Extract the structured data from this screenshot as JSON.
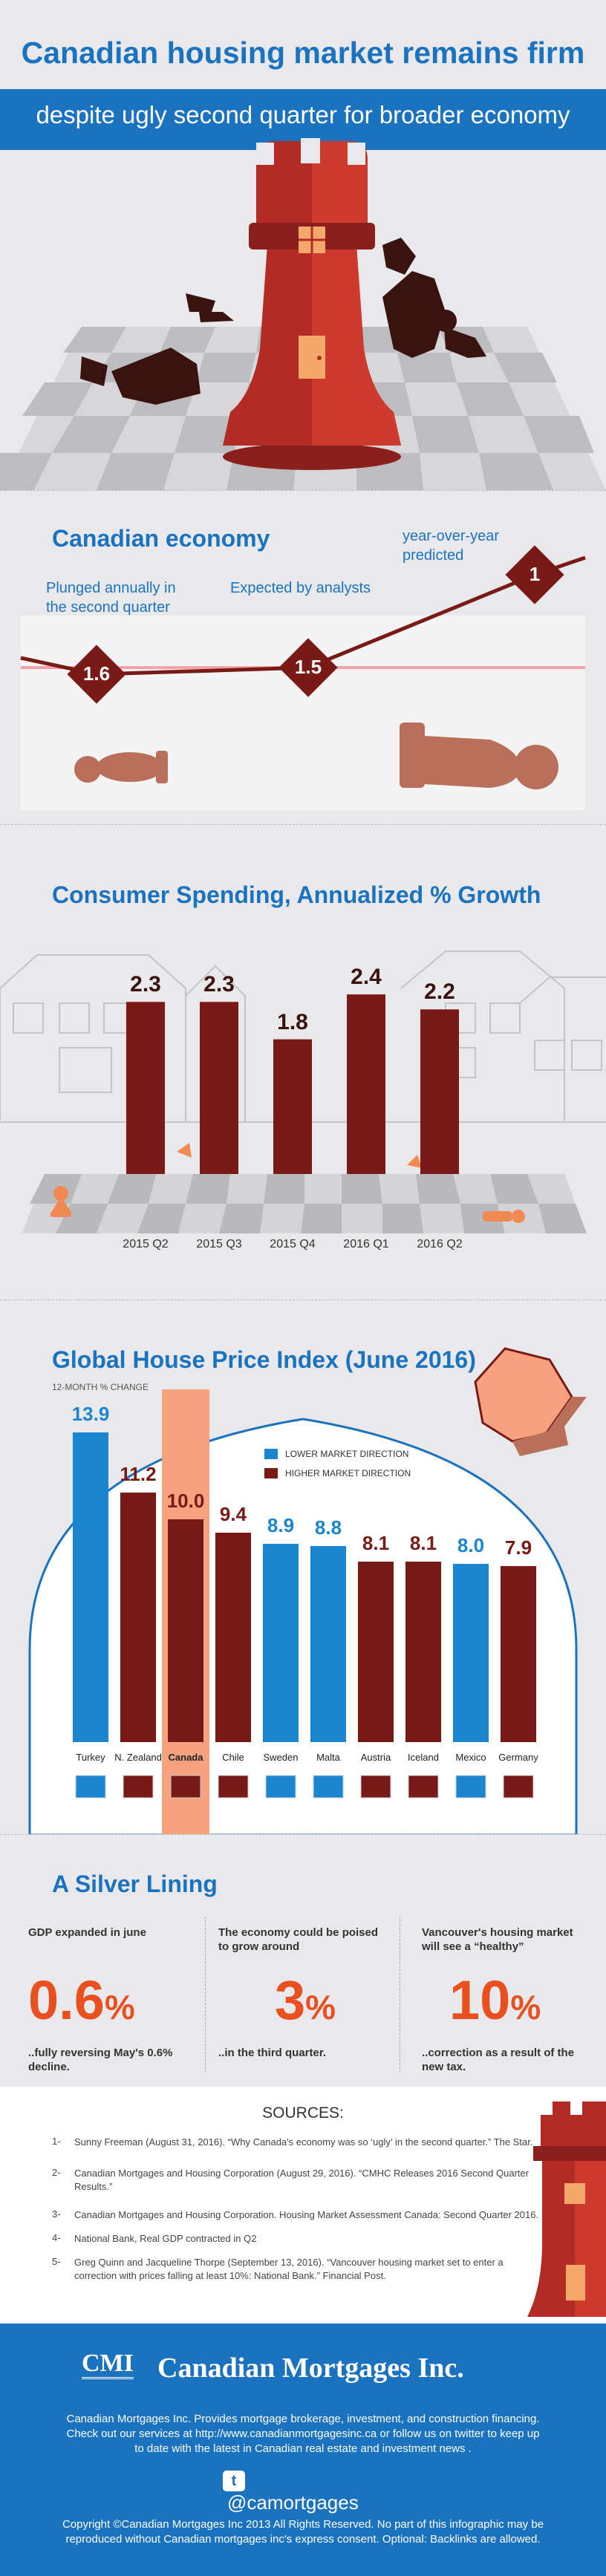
{
  "header": {
    "title": "Canadian housing market remains firm",
    "subtitle": "despite ugly second quarter for broader economy"
  },
  "economy": {
    "title": "Canadian economy",
    "points": [
      {
        "value": "1.6",
        "label_line1": "Plunged annually in",
        "label_line2": "the second quarter"
      },
      {
        "value": "1.5",
        "label_line1": "Expected by analysts",
        "label_line2": ""
      },
      {
        "value": "1",
        "label_line1": "year-over-year",
        "label_line2": "predicted"
      }
    ]
  },
  "spending": {
    "title": "Consumer Spending, Annualized % Growth",
    "chart_data": {
      "type": "bar",
      "title": "Consumer Spending, Annualized % Growth",
      "categories": [
        "2015 Q2",
        "2015 Q3",
        "2015 Q4",
        "2016 Q1",
        "2016 Q2"
      ],
      "values": [
        2.3,
        2.3,
        1.8,
        2.4,
        2.2
      ],
      "labels": [
        "2.3",
        "2.3",
        "1.8",
        "2.4",
        "2.2"
      ],
      "ylim": [
        0,
        2.6
      ],
      "color": "#7a1a17"
    }
  },
  "hpi": {
    "title": "Global House Price Index (June 2016)",
    "subtitle": "12-MONTH % CHANGE",
    "legend": {
      "lower": "LOWER MARKET DIRECTION",
      "higher": "HIGHER MARKET DIRECTION"
    },
    "colors": {
      "lower": "#1b86d0",
      "higher": "#7a1a17",
      "highlight": "#f6a27e"
    },
    "chart_data": {
      "type": "bar",
      "title": "Global House Price Index (June 2016)",
      "ylabel": "12-MONTH % CHANGE",
      "categories": [
        "Turkey",
        "N. Zealand",
        "Canada",
        "Chile",
        "Sweden",
        "Malta",
        "Austria",
        "Iceland",
        "Mexico",
        "Germany"
      ],
      "values": [
        13.9,
        11.2,
        10.0,
        9.4,
        8.9,
        8.8,
        8.1,
        8.1,
        8.0,
        7.9
      ],
      "labels": [
        "13.9",
        "11.2",
        "10.0",
        "9.4",
        "8.9",
        "8.8",
        "8.1",
        "8.1",
        "8.0",
        "7.9"
      ],
      "direction": [
        "lower",
        "higher",
        "higher",
        "higher",
        "lower",
        "lower",
        "higher",
        "higher",
        "lower",
        "higher"
      ],
      "highlight": "Canada",
      "ylim": [
        0,
        14
      ]
    }
  },
  "silver": {
    "title": "A Silver Lining",
    "stats": [
      {
        "label_line1": "GDP expanded in june",
        "label_line2": "",
        "value": "0.6",
        "unit": "%",
        "foot_line1": "..fully reversing May's 0.6%",
        "foot_line2": "decline."
      },
      {
        "label_line1": "The economy could be poised",
        "label_line2": "to grow around",
        "value": "3",
        "unit": "%",
        "foot_line1": "..in the third quarter.",
        "foot_line2": ""
      },
      {
        "label_line1": "Vancouver's housing market",
        "label_line2": "will see a “healthy”",
        "value": "10",
        "unit": "%",
        "foot_line1": "..correction as a result of the",
        "foot_line2": "new tax."
      }
    ]
  },
  "sources": {
    "title": "SOURCES:",
    "items": [
      {
        "num": "1-",
        "line1": "Sunny Freeman (August 31, 2016). “Why Canada's economy was so ‘ugly’ in the second quarter.” The Star.",
        "line2": ""
      },
      {
        "num": "2-",
        "line1": "Canadian Mortgages and Housing Corporation (August 29, 2016). “CMHC Releases 2016 Second Quarter",
        "line2": "Results.”"
      },
      {
        "num": "3-",
        "line1": "Canadian Mortgages and Housing Corporation. Housing Market Assessment Canada: Second Quarter 2016.",
        "line2": ""
      },
      {
        "num": "4-",
        "line1": "National Bank, Real GDP contracted in Q2",
        "line2": ""
      },
      {
        "num": "5-",
        "line1": "Greg Quinn and Jacqueline Thorpe (September 13, 2016). “Vancouver housing market set to enter a",
        "line2": "correction with prices falling at least 10%: National Bank.” Financial Post."
      }
    ]
  },
  "footer": {
    "logo_letters": "CMI",
    "company": "Canadian Mortgages Inc.",
    "desc_line1": "Canadian Mortgages Inc. Provides mortgage brokerage, investment, and construction financing.",
    "desc_line2": "Check out our services at http://www.canadianmortgagesinc.ca or follow us on twitter to keep up",
    "desc_line3": "to date with the latest in Canadian real estate and investment news .",
    "twitter": "@camortgages",
    "copy_line1": "Copyright ©Canadian Mortgages Inc 2013 All Rights Reserved. No part of this infographic may be",
    "copy_line2": "reproduced without Canadian mortgages inc's express consent. Optional: Backlinks are allowed.",
    "bg": "#1b73c0"
  }
}
